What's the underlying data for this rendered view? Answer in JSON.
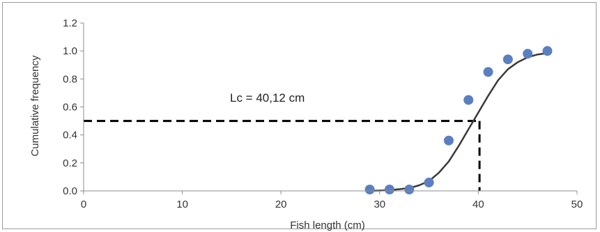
{
  "chart_data": {
    "type": "scatter",
    "xlabel": "Fish length (cm)",
    "ylabel": "Cumulative frequency",
    "xlim": [
      0,
      50
    ],
    "ylim": [
      0,
      1.2
    ],
    "xticks": [
      0,
      10,
      20,
      30,
      40,
      50
    ],
    "yticks": [
      "0.0",
      "0.2",
      "0.4",
      "0.6",
      "0.8",
      "1.0",
      "1.2"
    ],
    "grid": false,
    "series": [
      {
        "type": "scatter",
        "color": "#5b7fc0",
        "x": [
          29,
          31,
          33,
          35,
          37,
          39,
          41,
          43,
          45,
          47
        ],
        "y": [
          0.01,
          0.01,
          0.01,
          0.06,
          0.36,
          0.65,
          0.85,
          0.94,
          0.98,
          1.0
        ]
      },
      {
        "type": "line",
        "color": "#3a3a3a",
        "x": [
          29,
          31,
          33,
          34,
          35,
          36,
          37,
          38,
          39,
          40,
          41,
          42,
          43,
          44,
          45,
          46,
          47
        ],
        "y": [
          0.0,
          0.005,
          0.02,
          0.04,
          0.07,
          0.13,
          0.21,
          0.32,
          0.44,
          0.56,
          0.68,
          0.79,
          0.87,
          0.92,
          0.955,
          0.975,
          0.985
        ]
      }
    ],
    "reference_lines": {
      "horizontal_y": 0.5,
      "vertical_x": 40.12,
      "style": "dashed",
      "color": "#000000"
    },
    "annotation": "Lc = 40,12 cm"
  }
}
